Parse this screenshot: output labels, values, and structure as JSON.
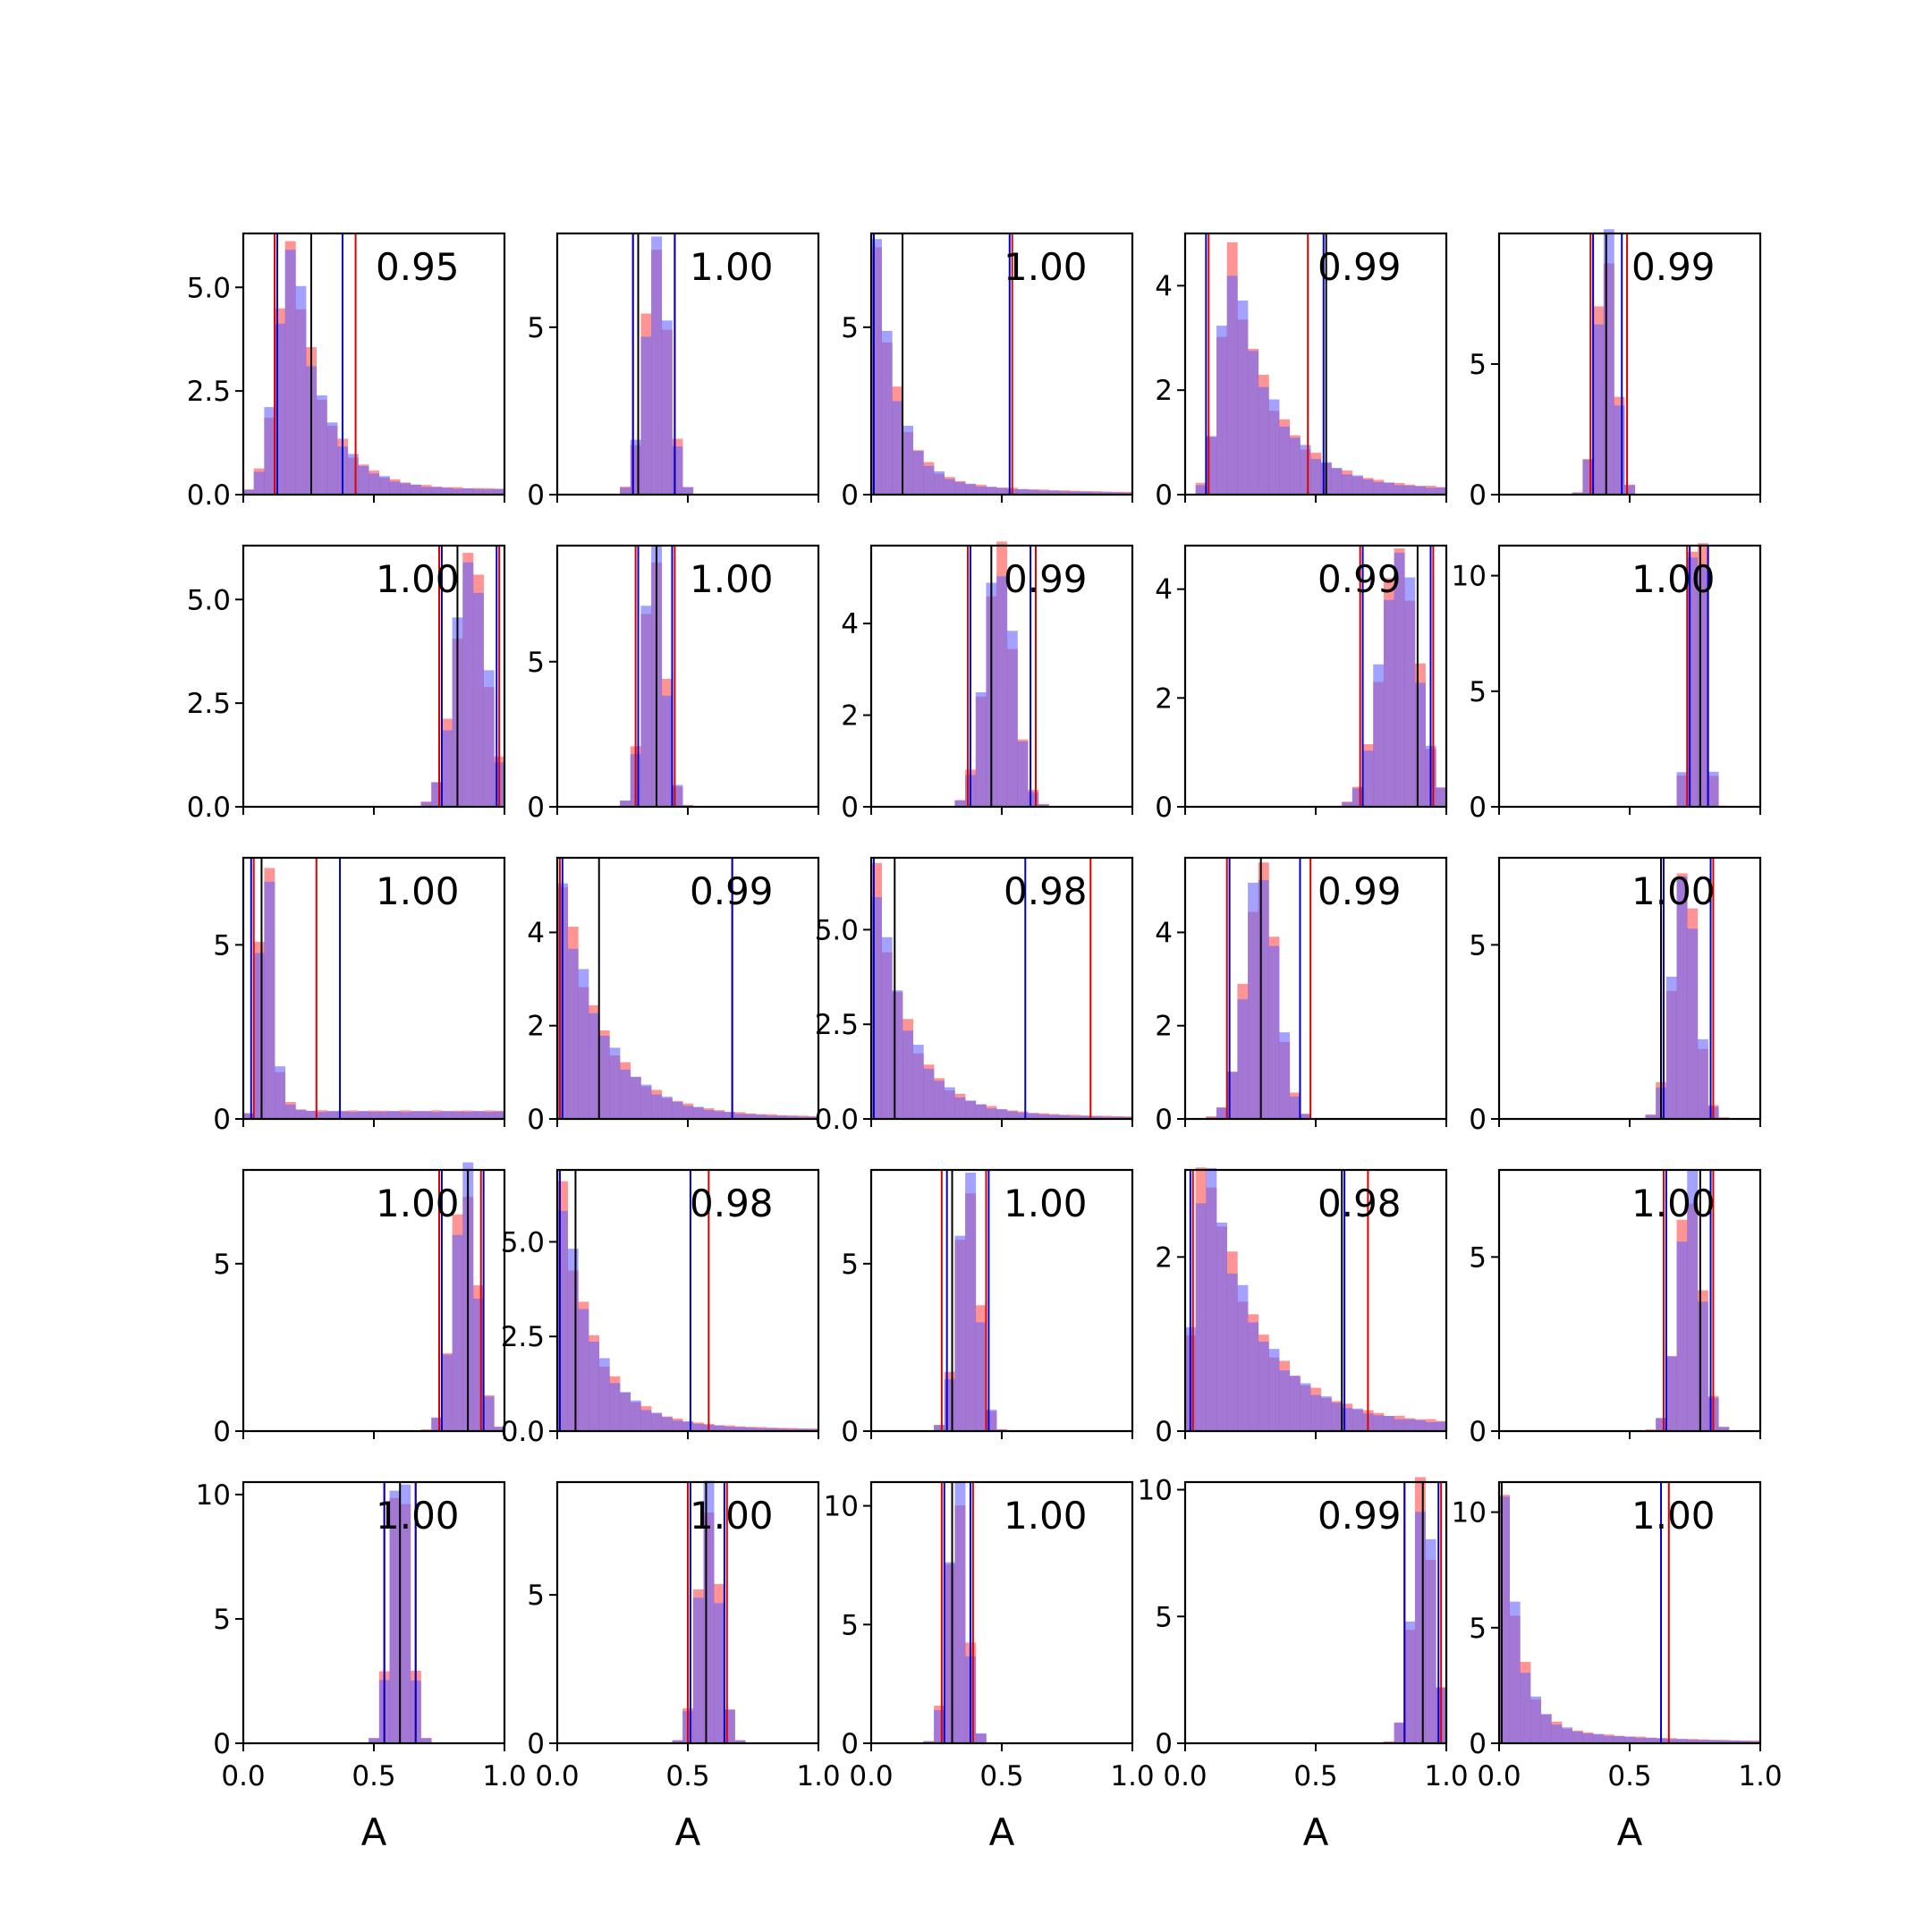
{
  "chart_data": {
    "type": "histogram-grid",
    "rows": 5,
    "cols": 5,
    "xlim": [
      0.0,
      1.0
    ],
    "xticks": [
      0.0,
      0.5,
      1.0
    ],
    "xtick_labels": [
      "0.0",
      "0.5",
      "1.0"
    ],
    "xlabel": "A",
    "series_colors": {
      "red": "#ff4d4d",
      "blue": "#6666ff",
      "overlap": "#7f3fbf"
    },
    "line_colors": {
      "red": "#dd0000",
      "blue": "#0000cc",
      "black": "#000000"
    },
    "panels": [
      {
        "corr": "0.95",
        "ylim": [
          0,
          6.3
        ],
        "yticks": [
          0,
          2.5,
          5
        ],
        "ytick_labels": [
          "0.0",
          "2.5",
          "5.0"
        ],
        "dist": {
          "type": "skew",
          "mode": 0.19,
          "scale": 0.1,
          "tail": 1.2
        },
        "peak": 6.0,
        "vlines": {
          "red": [
            0.12,
            0.43
          ],
          "blue": [
            0.13,
            0.38
          ],
          "black": [
            0.26
          ]
        }
      },
      {
        "corr": "1.00",
        "ylim": [
          0,
          7.8
        ],
        "yticks": [
          0,
          5
        ],
        "ytick_labels": [
          "0",
          "5"
        ],
        "dist": {
          "type": "normal",
          "mean": 0.38,
          "sd": 0.045
        },
        "peak": 7.5,
        "vlines": {
          "red": [
            0.29,
            0.45
          ],
          "blue": [
            0.29,
            0.45
          ],
          "black": [
            0.31
          ]
        }
      },
      {
        "corr": "1.00",
        "ylim": [
          0,
          7.8
        ],
        "yticks": [
          0,
          5
        ],
        "ytick_labels": [
          "0",
          "5"
        ],
        "dist": {
          "type": "exp",
          "scale": 0.08
        },
        "peak": 7.5,
        "vlines": {
          "red": [
            0.01,
            0.54
          ],
          "blue": [
            0.01,
            0.53
          ],
          "black": [
            0.12
          ]
        }
      },
      {
        "corr": "0.99",
        "ylim": [
          0,
          5.0
        ],
        "yticks": [
          0,
          2,
          4
        ],
        "ytick_labels": [
          "0",
          "2",
          "4"
        ],
        "dist": {
          "type": "skew",
          "mode": 0.18,
          "scale": 0.08,
          "tail": 2.2
        },
        "peak": 4.5,
        "vlines": {
          "red": [
            0.09,
            0.47
          ],
          "blue": [
            0.08,
            0.53
          ],
          "black": [
            0.54
          ]
        }
      },
      {
        "corr": "0.99",
        "ylim": [
          0,
          10.0
        ],
        "yticks": [
          0,
          5
        ],
        "ytick_labels": [
          "0",
          "5"
        ],
        "dist": {
          "type": "normal",
          "mean": 0.41,
          "sd": 0.035
        },
        "peak": 9.5,
        "vlines": {
          "red": [
            0.35,
            0.49
          ],
          "blue": [
            0.36,
            0.47
          ],
          "black": [
            0.41
          ]
        }
      },
      {
        "corr": "1.00",
        "ylim": [
          0,
          6.3
        ],
        "yticks": [
          0,
          2.5,
          5
        ],
        "ytick_labels": [
          "0.0",
          "2.5",
          "5.0"
        ],
        "dist": {
          "type": "normal",
          "mean": 0.87,
          "sd": 0.06
        },
        "peak": 6.0,
        "vlines": {
          "red": [
            0.75,
            0.98
          ],
          "blue": [
            0.76,
            0.97
          ],
          "black": [
            0.82
          ]
        }
      },
      {
        "corr": "1.00",
        "ylim": [
          0,
          9.0
        ],
        "yticks": [
          0,
          5
        ],
        "ytick_labels": [
          "0",
          "5"
        ],
        "dist": {
          "type": "normal",
          "mean": 0.37,
          "sd": 0.04
        },
        "peak": 8.7,
        "vlines": {
          "red": [
            0.3,
            0.45
          ],
          "blue": [
            0.31,
            0.44
          ],
          "black": [
            0.38
          ]
        }
      },
      {
        "corr": "0.99",
        "ylim": [
          0,
          5.7
        ],
        "yticks": [
          0,
          2,
          4
        ],
        "ytick_labels": [
          "0",
          "2",
          "4"
        ],
        "dist": {
          "type": "normal",
          "mean": 0.49,
          "sd": 0.055
        },
        "peak": 5.4,
        "vlines": {
          "red": [
            0.37,
            0.63
          ],
          "blue": [
            0.38,
            0.61
          ],
          "black": [
            0.46
          ]
        }
      },
      {
        "corr": "0.99",
        "ylim": [
          0,
          4.8
        ],
        "yticks": [
          0,
          2,
          4
        ],
        "ytick_labels": [
          "0",
          "2",
          "4"
        ],
        "dist": {
          "type": "normal",
          "mean": 0.82,
          "sd": 0.07
        },
        "peak": 4.7,
        "vlines": {
          "red": [
            0.67,
            0.95
          ],
          "blue": [
            0.68,
            0.94
          ],
          "black": [
            0.89
          ]
        }
      },
      {
        "corr": "1.00",
        "ylim": [
          0,
          11.3
        ],
        "yticks": [
          0,
          5,
          10
        ],
        "ytick_labels": [
          "0",
          "5",
          "10"
        ],
        "dist": {
          "type": "normal",
          "mean": 0.76,
          "sd": 0.028
        },
        "peak": 10.9,
        "vlines": {
          "red": [
            0.72,
            0.8
          ],
          "blue": [
            0.73,
            0.8
          ],
          "black": [
            0.77
          ]
        }
      },
      {
        "corr": "1.00",
        "ylim": [
          0,
          7.5
        ],
        "yticks": [
          0,
          5
        ],
        "ytick_labels": [
          "0",
          "5"
        ],
        "dist": {
          "type": "skew",
          "mode": 0.09,
          "scale": 0.04,
          "tail": 0.6
        },
        "peak": 7.0,
        "vlines": {
          "red": [
            0.04,
            0.28
          ],
          "blue": [
            0.03,
            0.37
          ],
          "black": [
            0.07
          ]
        }
      },
      {
        "corr": "0.99",
        "ylim": [
          0,
          5.6
        ],
        "yticks": [
          0,
          2,
          4
        ],
        "ytick_labels": [
          "0",
          "2",
          "4"
        ],
        "dist": {
          "type": "exp",
          "scale": 0.15
        },
        "peak": 5.0,
        "vlines": {
          "red": [
            0.01,
            0.67
          ],
          "blue": [
            0.02,
            0.67
          ],
          "black": [
            0.16
          ]
        }
      },
      {
        "corr": "0.98",
        "ylim": [
          0,
          6.9
        ],
        "yticks": [
          0,
          2.5,
          5
        ],
        "ytick_labels": [
          "0.0",
          "2.5",
          "5.0"
        ],
        "dist": {
          "type": "exp",
          "scale": 0.12
        },
        "peak": 6.3,
        "vlines": {
          "red": [
            0.0,
            0.84
          ],
          "blue": [
            0.01,
            0.59
          ],
          "black": [
            0.09
          ]
        }
      },
      {
        "corr": "0.99",
        "ylim": [
          0,
          5.6
        ],
        "yticks": [
          0,
          2,
          4
        ],
        "ytick_labels": [
          "0",
          "2",
          "4"
        ],
        "dist": {
          "type": "normal",
          "mean": 0.29,
          "sd": 0.06
        },
        "peak": 5.3,
        "vlines": {
          "red": [
            0.16,
            0.48
          ],
          "blue": [
            0.17,
            0.44
          ],
          "black": [
            0.29
          ]
        }
      },
      {
        "corr": "1.00",
        "ylim": [
          0,
          7.5
        ],
        "yticks": [
          0,
          5
        ],
        "ytick_labels": [
          "0",
          "5"
        ],
        "dist": {
          "type": "normal",
          "mean": 0.71,
          "sd": 0.045
        },
        "peak": 7.0,
        "vlines": {
          "red": [
            0.62,
            0.82
          ],
          "blue": [
            0.63,
            0.81
          ],
          "black": [
            0.62
          ]
        }
      },
      {
        "corr": "1.00",
        "ylim": [
          0,
          7.8
        ],
        "yticks": [
          0,
          5
        ],
        "ytick_labels": [
          "0",
          "5"
        ],
        "dist": {
          "type": "normal",
          "mean": 0.85,
          "sd": 0.045
        },
        "peak": 7.5,
        "vlines": {
          "red": [
            0.75,
            0.91
          ],
          "blue": [
            0.76,
            0.92
          ],
          "black": [
            0.86
          ]
        }
      },
      {
        "corr": "0.98",
        "ylim": [
          0,
          6.9
        ],
        "yticks": [
          0,
          2.5,
          5
        ],
        "ytick_labels": [
          "0.0",
          "2.5",
          "5.0"
        ],
        "dist": {
          "type": "exp",
          "scale": 0.12
        },
        "peak": 6.2,
        "vlines": {
          "red": [
            0.01,
            0.58
          ],
          "blue": [
            0.01,
            0.51
          ],
          "black": [
            0.07
          ]
        }
      },
      {
        "corr": "1.00",
        "ylim": [
          0,
          7.8
        ],
        "yticks": [
          0,
          5
        ],
        "ytick_labels": [
          "0",
          "5"
        ],
        "dist": {
          "type": "normal",
          "mean": 0.37,
          "sd": 0.04
        },
        "peak": 7.4,
        "vlines": {
          "red": [
            0.27,
            0.44
          ],
          "blue": [
            0.29,
            0.45
          ],
          "black": [
            0.31
          ]
        }
      },
      {
        "corr": "0.98",
        "ylim": [
          0,
          3.0
        ],
        "yticks": [
          0,
          2
        ],
        "ytick_labels": [
          "0",
          "2"
        ],
        "dist": {
          "type": "skew",
          "mode": 0.08,
          "scale": 0.07,
          "tail": 3.0
        },
        "peak": 2.9,
        "vlines": {
          "red": [
            0.03,
            0.7
          ],
          "blue": [
            0.02,
            0.61
          ],
          "black": [
            0.6
          ]
        }
      },
      {
        "corr": "1.00",
        "ylim": [
          0,
          7.5
        ],
        "yticks": [
          0,
          5
        ],
        "ytick_labels": [
          "0",
          "5"
        ],
        "dist": {
          "type": "normal",
          "mean": 0.73,
          "sd": 0.045
        },
        "peak": 7.0,
        "vlines": {
          "red": [
            0.63,
            0.82
          ],
          "blue": [
            0.64,
            0.81
          ],
          "black": [
            0.77
          ]
        }
      },
      {
        "corr": "1.00",
        "ylim": [
          0,
          10.5
        ],
        "yticks": [
          0,
          5,
          10
        ],
        "ytick_labels": [
          "0",
          "5",
          "10"
        ],
        "dist": {
          "type": "normal",
          "mean": 0.6,
          "sd": 0.035
        },
        "peak": 10.0,
        "vlines": {
          "red": [
            0.54,
            0.66
          ],
          "blue": [
            0.54,
            0.66
          ],
          "black": [
            0.6
          ]
        }
      },
      {
        "corr": "1.00",
        "ylim": [
          0,
          8.8
        ],
        "yticks": [
          0,
          5
        ],
        "ytick_labels": [
          "0",
          "5"
        ],
        "dist": {
          "type": "normal",
          "mean": 0.58,
          "sd": 0.04
        },
        "peak": 8.3,
        "vlines": {
          "red": [
            0.5,
            0.65
          ],
          "blue": [
            0.51,
            0.64
          ],
          "black": [
            0.57
          ]
        }
      },
      {
        "corr": "1.00",
        "ylim": [
          0,
          11.0
        ],
        "yticks": [
          0,
          5,
          10
        ],
        "ytick_labels": [
          "0",
          "5",
          "10"
        ],
        "dist": {
          "type": "normal",
          "mean": 0.33,
          "sd": 0.035
        },
        "peak": 10.5,
        "vlines": {
          "red": [
            0.27,
            0.39
          ],
          "blue": [
            0.28,
            0.38
          ],
          "black": [
            0.31
          ]
        }
      },
      {
        "corr": "0.99",
        "ylim": [
          0,
          10.3
        ],
        "yticks": [
          0,
          5,
          10
        ],
        "ytick_labels": [
          "0",
          "5",
          "10"
        ],
        "dist": {
          "type": "normal",
          "mean": 0.91,
          "sd": 0.04
        },
        "peak": 9.8,
        "vlines": {
          "red": [
            0.84,
            0.98
          ],
          "blue": [
            0.84,
            0.97
          ],
          "black": [
            0.91
          ]
        }
      },
      {
        "corr": "1.00",
        "ylim": [
          0,
          11.3
        ],
        "yticks": [
          0,
          5,
          10
        ],
        "ytick_labels": [
          "0",
          "5",
          "10"
        ],
        "dist": {
          "type": "exp",
          "scale": 0.06
        },
        "peak": 10.7,
        "vlines": {
          "red": [
            0.0,
            0.65
          ],
          "blue": [
            0.0,
            0.62
          ],
          "black": [
            0.01
          ]
        }
      }
    ]
  }
}
